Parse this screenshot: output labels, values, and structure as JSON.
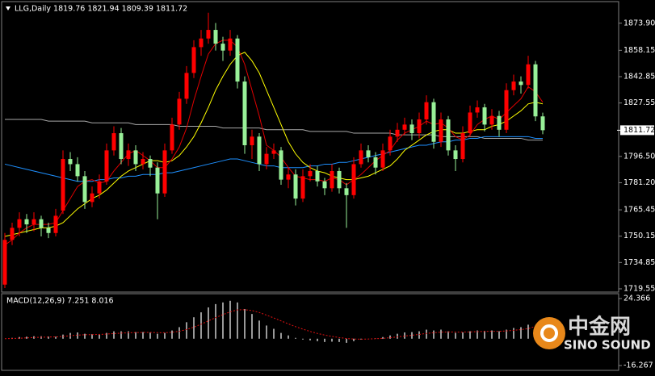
{
  "chart_data": [
    {
      "type": "candlestick",
      "title": "LLG,Daily  1819.76 1821.94 1809.39 1811.72",
      "up_color": "#ff0000",
      "down_color": "#98f098",
      "ylim": [
        1718.6,
        1884.1
      ],
      "yticks": [
        {
          "value": 1873.9,
          "label": "1873.90"
        },
        1858.15,
        1842.85,
        1827.55,
        {
          "value": 1796.5,
          "label": "1796.50"
        },
        {
          "value": 1781.2,
          "label": "1781.20"
        },
        1765.45,
        1750.15,
        1734.85,
        1719.55
      ],
      "last_price": 1811.72,
      "ohlc": [
        [
          1722,
          1752,
          1720,
          1748
        ],
        [
          1748,
          1758,
          1745,
          1755
        ],
        [
          1755,
          1764,
          1750,
          1760
        ],
        [
          1760,
          1763,
          1752,
          1757
        ],
        [
          1757,
          1764,
          1753,
          1760
        ],
        [
          1760,
          1762,
          1750,
          1755
        ],
        [
          1755,
          1758,
          1749,
          1752
        ],
        [
          1752,
          1766,
          1750,
          1762
        ],
        [
          1765,
          1800,
          1763,
          1795
        ],
        [
          1795,
          1799,
          1788,
          1792
        ],
        [
          1792,
          1796,
          1782,
          1785
        ],
        [
          1785,
          1788,
          1766,
          1770
        ],
        [
          1770,
          1779,
          1767,
          1775
        ],
        [
          1775,
          1786,
          1772,
          1782
        ],
        [
          1782,
          1804,
          1780,
          1800
        ],
        [
          1800,
          1814,
          1797,
          1810
        ],
        [
          1810,
          1813,
          1792,
          1795
        ],
        [
          1795,
          1804,
          1791,
          1800
        ],
        [
          1800,
          1803,
          1788,
          1792
        ],
        [
          1792,
          1799,
          1789,
          1795
        ],
        [
          1795,
          1797,
          1785,
          1790
        ],
        [
          1790,
          1793,
          1760,
          1775
        ],
        [
          1775,
          1804,
          1773,
          1800
        ],
        [
          1800,
          1819,
          1798,
          1815
        ],
        [
          1815,
          1834,
          1812,
          1830
        ],
        [
          1830,
          1849,
          1827,
          1845
        ],
        [
          1845,
          1864,
          1842,
          1860
        ],
        [
          1860,
          1870,
          1855,
          1865
        ],
        [
          1865,
          1880,
          1862,
          1870
        ],
        [
          1870,
          1874,
          1858,
          1862
        ],
        [
          1862,
          1866,
          1852,
          1858
        ],
        [
          1858,
          1870,
          1855,
          1865
        ],
        [
          1865,
          1867,
          1836,
          1840
        ],
        [
          1840,
          1843,
          1798,
          1803
        ],
        [
          1803,
          1812,
          1795,
          1808
        ],
        [
          1808,
          1810,
          1788,
          1792
        ],
        [
          1792,
          1802,
          1789,
          1798
        ],
        [
          1798,
          1804,
          1795,
          1800
        ],
        [
          1800,
          1802,
          1780,
          1783
        ],
        [
          1783,
          1790,
          1778,
          1786
        ],
        [
          1786,
          1789,
          1768,
          1772
        ],
        [
          1772,
          1789,
          1770,
          1785
        ],
        [
          1785,
          1792,
          1782,
          1788
        ],
        [
          1788,
          1791,
          1779,
          1782
        ],
        [
          1782,
          1784,
          1774,
          1778
        ],
        [
          1778,
          1792,
          1776,
          1788
        ],
        [
          1788,
          1790,
          1775,
          1778
        ],
        [
          1778,
          1781,
          1755,
          1774
        ],
        [
          1774,
          1796,
          1772,
          1792
        ],
        [
          1792,
          1804,
          1790,
          1800
        ],
        [
          1800,
          1803,
          1793,
          1796
        ],
        [
          1796,
          1799,
          1786,
          1790
        ],
        [
          1790,
          1804,
          1788,
          1800
        ],
        [
          1800,
          1812,
          1797,
          1808
        ],
        [
          1808,
          1816,
          1805,
          1812
        ],
        [
          1812,
          1819,
          1809,
          1815
        ],
        [
          1815,
          1818,
          1806,
          1810
        ],
        [
          1810,
          1822,
          1807,
          1818
        ],
        [
          1818,
          1832,
          1815,
          1828
        ],
        [
          1828,
          1830,
          1801,
          1805
        ],
        [
          1805,
          1822,
          1802,
          1818
        ],
        [
          1818,
          1820,
          1797,
          1800
        ],
        [
          1800,
          1803,
          1788,
          1795
        ],
        [
          1795,
          1814,
          1793,
          1810
        ],
        [
          1810,
          1826,
          1808,
          1822
        ],
        [
          1822,
          1829,
          1819,
          1825
        ],
        [
          1825,
          1827,
          1811,
          1815
        ],
        [
          1815,
          1824,
          1812,
          1820
        ],
        [
          1820,
          1823,
          1808,
          1812
        ],
        [
          1812,
          1839,
          1810,
          1835
        ],
        [
          1835,
          1844,
          1832,
          1840
        ],
        [
          1840,
          1843,
          1833,
          1838
        ],
        [
          1838,
          1855,
          1836,
          1850
        ],
        [
          1850,
          1852,
          1817,
          1819.76
        ],
        [
          1819.76,
          1821.94,
          1809.39,
          1811.72
        ]
      ],
      "series": [
        {
          "color": "#a8a8a8",
          "values": [
            1818,
            1818,
            1818,
            1818,
            1818,
            1818,
            1817,
            1817,
            1817,
            1817,
            1817,
            1817,
            1816,
            1816,
            1816,
            1816,
            1816,
            1816,
            1815,
            1815,
            1815,
            1815,
            1815,
            1815,
            1814,
            1814,
            1814,
            1814,
            1814,
            1814,
            1813,
            1813,
            1813,
            1813,
            1813,
            1813,
            1812,
            1812,
            1812,
            1812,
            1812,
            1812,
            1811,
            1811,
            1811,
            1811,
            1811,
            1811,
            1810,
            1810,
            1810,
            1810,
            1810,
            1810,
            1809,
            1809,
            1809,
            1809,
            1809,
            1809,
            1808,
            1808,
            1808,
            1808,
            1808,
            1808,
            1807,
            1807,
            1807,
            1807,
            1807,
            1807,
            1806,
            1806,
            1806
          ]
        },
        {
          "color": "#1e90ff",
          "values": [
            1792,
            1791,
            1790,
            1789,
            1788,
            1787,
            1786,
            1785,
            1784,
            1783,
            1782,
            1782,
            1782,
            1783,
            1783,
            1784,
            1784,
            1785,
            1785,
            1786,
            1786,
            1786,
            1787,
            1787,
            1788,
            1789,
            1790,
            1791,
            1792,
            1793,
            1794,
            1795,
            1795,
            1794,
            1793,
            1792,
            1791,
            1791,
            1790,
            1790,
            1790,
            1790,
            1791,
            1791,
            1792,
            1792,
            1793,
            1793,
            1794,
            1795,
            1796,
            1797,
            1798,
            1799,
            1800,
            1801,
            1802,
            1803,
            1803,
            1804,
            1805,
            1805,
            1806,
            1806,
            1807,
            1807,
            1808,
            1808,
            1808,
            1808,
            1808,
            1808,
            1808,
            1807,
            1807
          ]
        },
        {
          "color": "#ffff00",
          "values": [
            1750,
            1751,
            1752,
            1753,
            1754,
            1755,
            1755,
            1756,
            1758,
            1762,
            1766,
            1769,
            1772,
            1774,
            1777,
            1781,
            1785,
            1788,
            1790,
            1792,
            1794,
            1794,
            1793,
            1794,
            1797,
            1802,
            1808,
            1816,
            1825,
            1835,
            1843,
            1850,
            1855,
            1857,
            1852,
            1845,
            1835,
            1825,
            1815,
            1805,
            1798,
            1793,
            1790,
            1788,
            1787,
            1785,
            1784,
            1783,
            1783,
            1784,
            1785,
            1787,
            1789,
            1791,
            1795,
            1800,
            1803,
            1806,
            1809,
            1811,
            1812,
            1812,
            1810,
            1810,
            1811,
            1812,
            1812,
            1814,
            1815,
            1817,
            1820,
            1823,
            1827,
            1828,
            1827
          ]
        },
        {
          "color": "#e00000",
          "values": [
            1745,
            1748,
            1752,
            1755,
            1757,
            1757,
            1757,
            1758,
            1765,
            1772,
            1779,
            1782,
            1783,
            1781,
            1782,
            1788,
            1793,
            1798,
            1800,
            1797,
            1794,
            1790,
            1790,
            1795,
            1802,
            1813,
            1829,
            1843,
            1856,
            1862,
            1864,
            1864,
            1860,
            1850,
            1835,
            1820,
            1803,
            1800,
            1796,
            1790,
            1785,
            1784,
            1783,
            1783,
            1782,
            1784,
            1783,
            1780,
            1783,
            1786,
            1790,
            1794,
            1797,
            1800,
            1806,
            1810,
            1812,
            1814,
            1817,
            1815,
            1816,
            1813,
            1808,
            1806,
            1809,
            1815,
            1818,
            1820,
            1818,
            1822,
            1826,
            1830,
            1837,
            1834,
            1828
          ]
        }
      ]
    },
    {
      "type": "macd",
      "title": "MACD(12,26,9) 7.251 8.016",
      "color": "#ffffff",
      "ylim": [
        -16.267,
        24.366
      ],
      "yticks": [
        24.366,
        -16.267
      ],
      "values": [
        0,
        0.5,
        1,
        1.2,
        1.5,
        1.5,
        1.3,
        1.2,
        2.5,
        3.5,
        3.8,
        3,
        2.8,
        2.8,
        3.5,
        4.5,
        4.5,
        4.5,
        4,
        4,
        3.8,
        3,
        3.5,
        5,
        7,
        10,
        13,
        16,
        19,
        21,
        22,
        23,
        22,
        18,
        15,
        11,
        8,
        6,
        3.5,
        2,
        0.5,
        -0.5,
        -1,
        -1.5,
        -2,
        -1.8,
        -2,
        -2.5,
        -1.5,
        -0.5,
        0,
        0.2,
        1,
        2,
        3,
        3.8,
        4,
        4.5,
        5.5,
        5,
        5.5,
        4.5,
        3.5,
        3.8,
        4.5,
        5,
        4.8,
        5,
        4.5,
        5.5,
        6.5,
        7,
        8.5,
        8,
        7.251
      ],
      "signal": {
        "color": "#e01010",
        "values": [
          0,
          0.1,
          0.3,
          0.5,
          0.7,
          0.9,
          1,
          1.1,
          1.4,
          1.8,
          2.2,
          2.4,
          2.5,
          2.6,
          2.8,
          3.1,
          3.4,
          3.6,
          3.7,
          3.8,
          3.8,
          3.7,
          3.6,
          3.9,
          4.5,
          5.6,
          7,
          8.8,
          10.8,
          12.8,
          14.6,
          16.3,
          17.5,
          17.6,
          17.1,
          15.9,
          14.3,
          12.6,
          10.8,
          9,
          7.3,
          5.8,
          4.4,
          3.2,
          2.2,
          1.4,
          0.7,
          0.1,
          -0.2,
          -0.3,
          -0.2,
          0,
          0.2,
          0.6,
          1.1,
          1.6,
          2.1,
          2.6,
          3.2,
          3.6,
          4,
          4.1,
          4,
          4,
          4.1,
          4.3,
          4.4,
          4.5,
          4.5,
          4.7,
          5.1,
          5.5,
          6.1,
          7.5,
          8.016
        ]
      }
    }
  ],
  "watermark": {
    "logo": "中金网",
    "brand": "SINO SOUND"
  }
}
